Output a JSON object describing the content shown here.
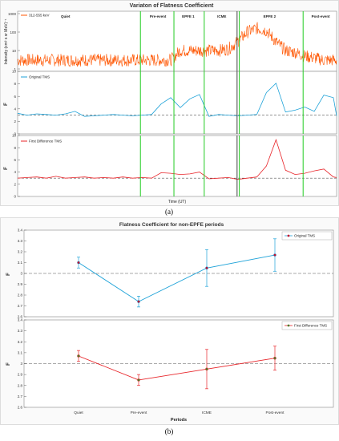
{
  "figure_a": {
    "title": "Variaton of Flatness Coefficient",
    "caption": "(a)",
    "xlabel": "Time (UT)"
  },
  "figure_b": {
    "caption": "(b)"
  },
  "colors": {
    "intensity": "#ff5500",
    "original": "#1da2d8",
    "first_diff": "#e8252a",
    "period_line": "#22cc22",
    "icme_line": "#444444",
    "dashed": "#555555",
    "marker_fill": "#c01030",
    "marker_fill_b": "#4d7a2a"
  },
  "chart_data": [
    {
      "type": "line",
      "panel": "intensity",
      "ylabel": "Intensity (cm² s sr MeV)⁻¹",
      "yscale": "log",
      "ylim": [
        1,
        1000
      ],
      "yticks": [
        "1",
        "10",
        "100",
        "1000"
      ],
      "series": [
        {
          "name": "312-555 keV"
        }
      ],
      "period_labels": [
        "Quiet",
        "Pre-event",
        "EPFE 1",
        "ICME",
        "EPFE 2",
        "Post-event"
      ],
      "x": [
        0,
        3,
        6,
        9,
        12,
        15,
        18,
        21,
        24,
        27,
        30,
        33,
        36,
        39,
        42,
        45,
        48,
        51,
        54,
        57,
        60,
        63,
        66,
        69,
        72,
        75,
        78,
        81,
        84,
        87,
        90,
        93,
        96,
        99,
        100
      ],
      "intensity": [
        3,
        3,
        3,
        3,
        3,
        3,
        3,
        3,
        3,
        3,
        3,
        3,
        3,
        3,
        3,
        3,
        3,
        10,
        10,
        10,
        10,
        10,
        12,
        30,
        100,
        160,
        120,
        30,
        10,
        8,
        5,
        4,
        3,
        3,
        3
      ]
    },
    {
      "type": "line",
      "panel": "original_tms",
      "ylabel": "F",
      "ylim": [
        0,
        10
      ],
      "yticks": [
        "0",
        "2",
        "4",
        "6",
        "8",
        "10"
      ],
      "reference": 3,
      "series": [
        {
          "name": "Original TMS",
          "x": [
            0,
            3,
            6,
            9,
            12,
            15,
            18,
            21,
            24,
            27,
            30,
            33,
            36,
            39,
            42,
            45,
            48,
            51,
            54,
            57,
            60,
            63,
            66,
            69,
            72,
            75,
            78,
            81,
            84,
            87,
            90,
            93,
            96,
            99,
            100
          ],
          "values": [
            3.3,
            3.0,
            3.2,
            3.1,
            3.0,
            3.2,
            3.6,
            2.8,
            2.9,
            3.0,
            3.1,
            3.0,
            2.9,
            3.0,
            3.1,
            4.8,
            5.8,
            4.2,
            5.6,
            6.3,
            2.8,
            3.1,
            3.0,
            2.9,
            3.0,
            3.1,
            6.6,
            8.1,
            3.5,
            3.8,
            4.3,
            3.6,
            6.2,
            5.8,
            2.9
          ]
        }
      ]
    },
    {
      "type": "line",
      "panel": "first_difference_tms",
      "ylabel": "F",
      "ylim": [
        0,
        10
      ],
      "yticks": [
        "0",
        "2",
        "4",
        "6",
        "8",
        "10"
      ],
      "reference": 3,
      "series": [
        {
          "name": "First Difference TMS",
          "x": [
            0,
            3,
            6,
            9,
            12,
            15,
            18,
            21,
            24,
            27,
            30,
            33,
            36,
            39,
            42,
            45,
            48,
            51,
            54,
            57,
            60,
            63,
            66,
            69,
            72,
            75,
            78,
            81,
            84,
            87,
            90,
            93,
            96,
            99,
            100
          ],
          "values": [
            3.0,
            3.1,
            3.2,
            3.0,
            3.3,
            3.0,
            3.1,
            3.2,
            3.0,
            3.1,
            3.0,
            3.2,
            3.0,
            3.1,
            3.0,
            3.9,
            3.8,
            3.6,
            3.7,
            4.0,
            2.9,
            3.0,
            3.1,
            2.8,
            3.0,
            3.2,
            5.0,
            9.3,
            4.3,
            3.6,
            3.8,
            4.2,
            4.5,
            3.2,
            3.1
          ]
        }
      ]
    },
    {
      "type": "line",
      "panel": "original_tms_nonepfe",
      "title": "Flatness Coefficient for non-EPFE periods",
      "ylabel": "F",
      "ylim": [
        2.6,
        3.4
      ],
      "yticks": [
        "2.6",
        "2.7",
        "2.8",
        "2.9",
        "3",
        "3.1",
        "3.2",
        "3.3",
        "3.4"
      ],
      "reference": 3,
      "categories": [
        "Quiet",
        "Pre-event",
        "ICME",
        "Post-event"
      ],
      "series": [
        {
          "name": "Original TMS",
          "values": [
            3.1,
            2.74,
            3.05,
            3.17
          ],
          "err_low": [
            0.05,
            0.05,
            0.17,
            0.15
          ],
          "err_high": [
            0.05,
            0.05,
            0.17,
            0.15
          ]
        }
      ]
    },
    {
      "type": "line",
      "panel": "first_difference_tms_nonepfe",
      "xlabel": "Periods",
      "ylabel": "F",
      "ylim": [
        2.6,
        3.4
      ],
      "yticks": [
        "2.6",
        "2.7",
        "2.8",
        "2.9",
        "3",
        "3.1",
        "3.2",
        "3.3",
        "3.4"
      ],
      "reference": 3,
      "categories": [
        "Quiet",
        "Pre-event",
        "ICME",
        "Post-event"
      ],
      "series": [
        {
          "name": "First Difference TMS",
          "values": [
            3.07,
            2.85,
            2.95,
            3.05
          ],
          "err_low": [
            0.05,
            0.05,
            0.18,
            0.11
          ],
          "err_high": [
            0.05,
            0.05,
            0.18,
            0.11
          ]
        }
      ]
    }
  ]
}
